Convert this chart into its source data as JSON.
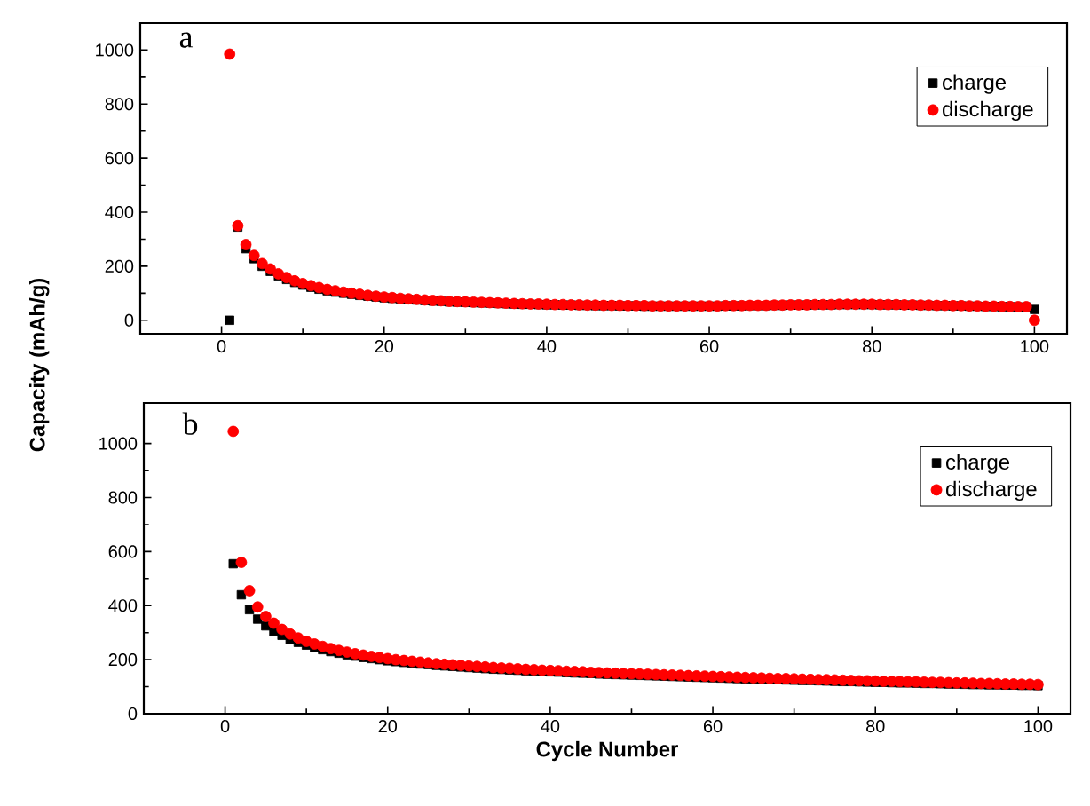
{
  "chart_data": [
    {
      "type": "scatter",
      "ylabel": "Capacity (mAh/g)",
      "annotations": [
        "a"
      ],
      "xlim": [
        -10,
        104
      ],
      "ylim": [
        -50,
        1100
      ],
      "xticks": [
        0,
        20,
        40,
        60,
        80,
        100
      ],
      "yticks": [
        0,
        200,
        400,
        600,
        800,
        1000
      ],
      "legend": "top right",
      "x": [
        1,
        2,
        3,
        4,
        5,
        6,
        7,
        8,
        9,
        10,
        11,
        12,
        13,
        14,
        15,
        16,
        17,
        18,
        19,
        20,
        21,
        22,
        23,
        24,
        25,
        26,
        27,
        28,
        29,
        30,
        31,
        32,
        33,
        34,
        35,
        36,
        37,
        38,
        39,
        40,
        41,
        42,
        43,
        44,
        45,
        46,
        47,
        48,
        49,
        50,
        51,
        52,
        53,
        54,
        55,
        56,
        57,
        58,
        59,
        60,
        61,
        62,
        63,
        64,
        65,
        66,
        67,
        68,
        69,
        70,
        71,
        72,
        73,
        74,
        75,
        76,
        77,
        78,
        79,
        80,
        81,
        82,
        83,
        84,
        85,
        86,
        87,
        88,
        89,
        90,
        91,
        92,
        93,
        94,
        95,
        96,
        97,
        98,
        99,
        100
      ],
      "series": [
        {
          "name": "charge",
          "color": "#000000",
          "marker": "square",
          "values": [
            0,
            345,
            265,
            228,
            200,
            181,
            164,
            151,
            140,
            130,
            122,
            115,
            109,
            104,
            100,
            96,
            92,
            89,
            86,
            83,
            81,
            79,
            77,
            75,
            73,
            71,
            70,
            68,
            67,
            66,
            65,
            64,
            63,
            62,
            61,
            60,
            59,
            59,
            58,
            57,
            57,
            56,
            56,
            55,
            55,
            54,
            54,
            54,
            53,
            53,
            53,
            52,
            52,
            52,
            52,
            52,
            52,
            52,
            52,
            52,
            52,
            53,
            53,
            53,
            54,
            54,
            54,
            55,
            55,
            56,
            56,
            56,
            57,
            57,
            57,
            58,
            58,
            58,
            58,
            58,
            57,
            57,
            57,
            56,
            56,
            55,
            55,
            54,
            54,
            53,
            53,
            52,
            52,
            51,
            51,
            50,
            50,
            49,
            49,
            40
          ]
        },
        {
          "name": "discharge",
          "color": "#ff0000",
          "marker": "circle",
          "values": [
            985,
            350,
            280,
            240,
            210,
            190,
            172,
            158,
            146,
            136,
            128,
            121,
            114,
            109,
            104,
            100,
            96,
            92,
            89,
            86,
            84,
            81,
            79,
            77,
            75,
            73,
            72,
            70,
            69,
            68,
            67,
            66,
            65,
            64,
            63,
            62,
            61,
            60,
            60,
            59,
            58,
            58,
            57,
            57,
            56,
            56,
            55,
            55,
            55,
            54,
            54,
            54,
            53,
            53,
            53,
            53,
            53,
            53,
            53,
            53,
            53,
            54,
            54,
            54,
            55,
            55,
            55,
            56,
            56,
            57,
            57,
            57,
            58,
            58,
            58,
            59,
            59,
            59,
            59,
            59,
            58,
            58,
            58,
            57,
            57,
            56,
            56,
            55,
            55,
            54,
            54,
            53,
            53,
            52,
            52,
            51,
            51,
            50,
            50,
            0
          ]
        }
      ]
    },
    {
      "type": "scatter",
      "xlabel": "Cycle Number",
      "annotations": [
        "b"
      ],
      "xlim": [
        -10,
        104
      ],
      "ylim": [
        0,
        1150
      ],
      "xticks": [
        0,
        20,
        40,
        60,
        80,
        100
      ],
      "yticks": [
        0,
        200,
        400,
        600,
        800,
        1000
      ],
      "legend": "top right",
      "x": [
        1,
        2,
        3,
        4,
        5,
        6,
        7,
        8,
        9,
        10,
        11,
        12,
        13,
        14,
        15,
        16,
        17,
        18,
        19,
        20,
        21,
        22,
        23,
        24,
        25,
        26,
        27,
        28,
        29,
        30,
        31,
        32,
        33,
        34,
        35,
        36,
        37,
        38,
        39,
        40,
        41,
        42,
        43,
        44,
        45,
        46,
        47,
        48,
        49,
        50,
        51,
        52,
        53,
        54,
        55,
        56,
        57,
        58,
        59,
        60,
        61,
        62,
        63,
        64,
        65,
        66,
        67,
        68,
        69,
        70,
        71,
        72,
        73,
        74,
        75,
        76,
        77,
        78,
        79,
        80,
        81,
        82,
        83,
        84,
        85,
        86,
        87,
        88,
        89,
        90,
        91,
        92,
        93,
        94,
        95,
        96,
        97,
        98,
        99,
        100
      ],
      "series": [
        {
          "name": "charge",
          "color": "#000000",
          "marker": "square",
          "values": [
            555,
            440,
            385,
            350,
            325,
            305,
            290,
            275,
            264,
            254,
            245,
            237,
            230,
            224,
            218,
            213,
            208,
            204,
            200,
            196,
            193,
            190,
            187,
            184,
            182,
            179,
            177,
            175,
            173,
            171,
            169,
            167,
            165,
            164,
            162,
            161,
            159,
            158,
            156,
            155,
            154,
            152,
            151,
            150,
            149,
            147,
            146,
            145,
            144,
            143,
            142,
            141,
            140,
            139,
            138,
            137,
            136,
            135,
            134,
            133,
            132,
            131,
            130,
            129,
            128,
            128,
            127,
            126,
            125,
            124,
            123,
            123,
            122,
            121,
            120,
            119,
            119,
            118,
            117,
            116,
            116,
            115,
            114,
            114,
            113,
            112,
            112,
            111,
            110,
            110,
            109,
            108,
            108,
            107,
            107,
            106,
            106,
            105,
            105,
            104
          ]
        },
        {
          "name": "discharge",
          "color": "#ff0000",
          "marker": "circle",
          "values": [
            1045,
            560,
            455,
            395,
            360,
            335,
            312,
            295,
            280,
            268,
            258,
            249,
            241,
            234,
            228,
            222,
            217,
            212,
            208,
            204,
            200,
            197,
            194,
            191,
            188,
            185,
            183,
            181,
            179,
            177,
            175,
            173,
            171,
            169,
            168,
            166,
            164,
            163,
            161,
            160,
            159,
            157,
            156,
            155,
            153,
            152,
            151,
            150,
            149,
            148,
            147,
            146,
            145,
            144,
            143,
            142,
            141,
            140,
            139,
            138,
            137,
            136,
            135,
            134,
            133,
            132,
            131,
            130,
            130,
            129,
            128,
            127,
            126,
            126,
            125,
            124,
            123,
            122,
            122,
            121,
            120,
            120,
            119,
            118,
            118,
            117,
            116,
            116,
            115,
            114,
            114,
            113,
            112,
            112,
            111,
            110,
            110,
            109,
            109,
            108
          ]
        }
      ]
    }
  ]
}
